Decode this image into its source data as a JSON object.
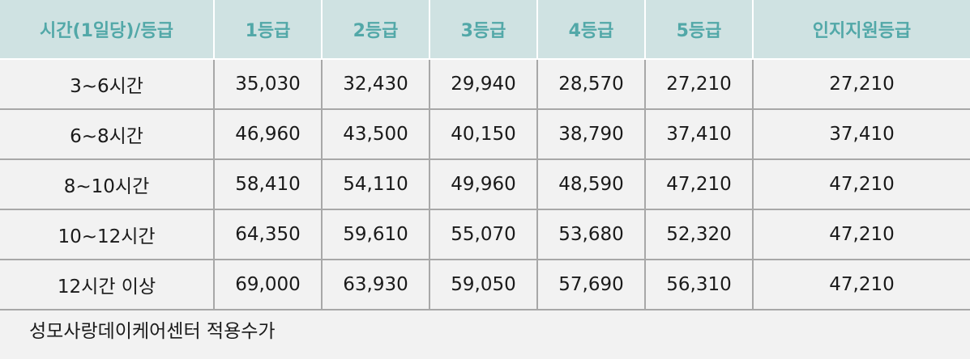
{
  "table": {
    "headers": [
      "시간(1일당)/등급",
      "1등급",
      "2등급",
      "3등급",
      "4등급",
      "5등급",
      "인지지원등급"
    ],
    "rows": [
      [
        "3~6시간",
        "35,030",
        "32,430",
        "29,940",
        "28,570",
        "27,210",
        "27,210"
      ],
      [
        "6~8시간",
        "46,960",
        "43,500",
        "40,150",
        "38,790",
        "37,410",
        "37,410"
      ],
      [
        "8~10시간",
        "58,410",
        "54,110",
        "49,960",
        "48,590",
        "47,210",
        "47,210"
      ],
      [
        "10~12시간",
        "64,350",
        "59,610",
        "55,070",
        "53,680",
        "52,320",
        "47,210"
      ],
      [
        "12시간 이상",
        "69,000",
        "63,930",
        "59,050",
        "57,690",
        "56,310",
        "47,210"
      ]
    ]
  },
  "footnote": "성모사랑데이케어센터 적용수가",
  "colors": {
    "header_bg": "#cfe2e2",
    "header_text": "#52a8a8",
    "body_bg": "#f2f2f2",
    "grid_line": "#a8a8a8"
  }
}
